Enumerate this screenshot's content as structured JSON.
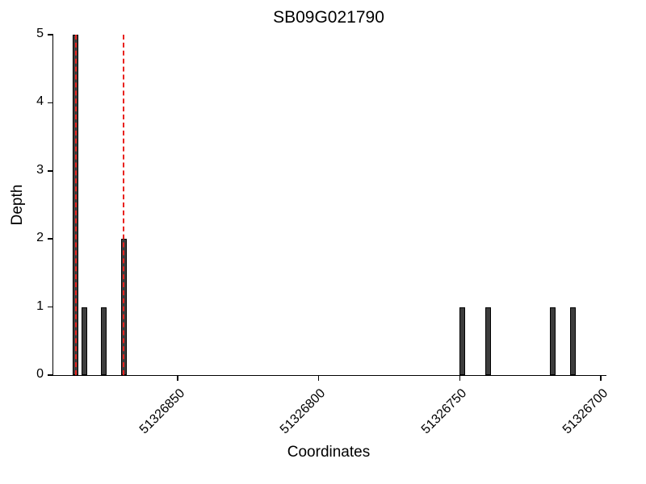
{
  "chart_data": {
    "type": "bar",
    "title": "SB09G021790",
    "xlabel": "Coordinates",
    "ylabel": "Depth",
    "x_axis_reversed": true,
    "x_range_left": 51326894,
    "x_range_right": 51326698,
    "ylim": [
      0,
      5
    ],
    "y_ticks": [
      0,
      1,
      2,
      3,
      4,
      5
    ],
    "x_ticks": [
      51326850,
      51326800,
      51326750,
      51326700
    ],
    "bars": [
      {
        "coordinate": 51326886,
        "depth": 5
      },
      {
        "coordinate": 51326883,
        "depth": 1
      },
      {
        "coordinate": 51326876,
        "depth": 1
      },
      {
        "coordinate": 51326869,
        "depth": 2
      },
      {
        "coordinate": 51326749,
        "depth": 1
      },
      {
        "coordinate": 51326740,
        "depth": 1
      },
      {
        "coordinate": 51326717,
        "depth": 1
      },
      {
        "coordinate": 51326710,
        "depth": 1
      }
    ],
    "bar_color": "#3d3d3d",
    "bar_edge_color": "#000000",
    "vlines": {
      "color": "#e8221e",
      "style": "dashed",
      "coordinates": [
        51326886,
        51326869
      ]
    },
    "grid": false,
    "legend": "none"
  }
}
